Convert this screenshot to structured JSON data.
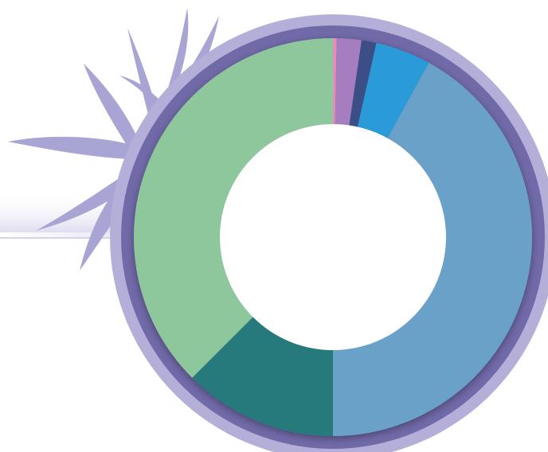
{
  "chart_data": {
    "type": "donut",
    "values": [
      0.3,
      2,
      1.2,
      4.5,
      42,
      12.5,
      37.5
    ],
    "colors": [
      "#e08fb8",
      "#a67dbf",
      "#3a4f86",
      "#2b9bd8",
      "#6aa1c9",
      "#267a7c",
      "#8fc79c"
    ]
  }
}
